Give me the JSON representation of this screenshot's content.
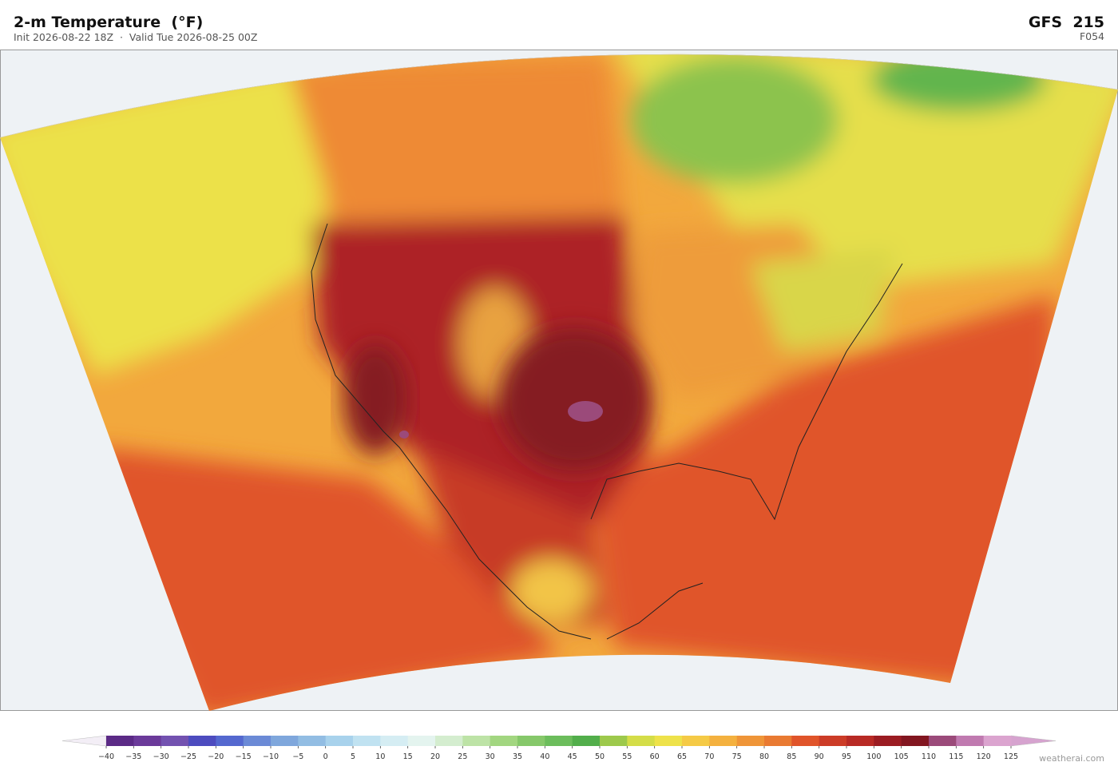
{
  "header": {
    "title": "2-m Temperature  (°F)",
    "subtitle": "Init 2026-08-22 18Z  ·  Valid Tue 2026-08-25 00Z",
    "model": "GFS  215",
    "forecast_hour": "F054"
  },
  "colorbar": {
    "ticks": [
      {
        "value": -40,
        "label": "−40"
      },
      {
        "value": -35,
        "label": "−35"
      },
      {
        "value": -30,
        "label": "−30"
      },
      {
        "value": -25,
        "label": "−25"
      },
      {
        "value": -20,
        "label": "−20"
      },
      {
        "value": -15,
        "label": "−15"
      },
      {
        "value": -10,
        "label": "−10"
      },
      {
        "value": -5,
        "label": "−5"
      },
      0,
      5,
      10,
      15,
      20,
      25,
      30,
      35,
      40,
      45,
      50,
      55,
      60,
      65,
      70,
      75,
      80,
      85,
      90,
      95,
      100,
      105,
      110,
      115,
      120,
      125
    ],
    "colors": [
      "#5b2a86",
      "#6b3a9a",
      "#7352b0",
      "#4d4cbf",
      "#5468cf",
      "#6b8ad6",
      "#7fa7dc",
      "#92bde3",
      "#a8d2ec",
      "#c0e2f1",
      "#d5edf3",
      "#e4f4ef",
      "#d4edcf",
      "#bde3a6",
      "#a2d680",
      "#86c86a",
      "#6cbd5c",
      "#52ae4b",
      "#9dc94c",
      "#d4dd48",
      "#eee24a",
      "#f5ca46",
      "#f4b13f",
      "#ef9538",
      "#e97a32",
      "#e0542a",
      "#cc3c27",
      "#b82a25",
      "#9b1c22",
      "#821620",
      "#9b4a7a",
      "#c07ab0",
      "#dba4cf"
    ],
    "under_color": "#f3eef6",
    "over_color": "#d6a3cf"
  },
  "footer": {
    "credit": "weatherai.com"
  }
}
